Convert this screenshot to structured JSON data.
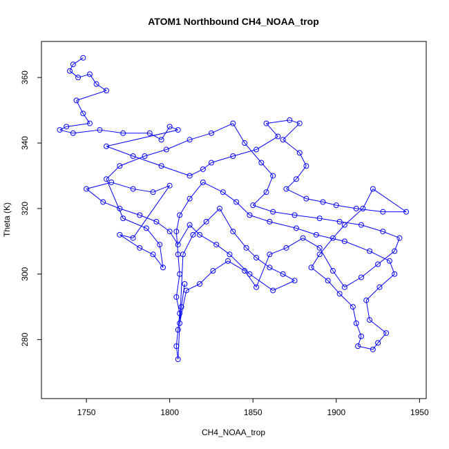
{
  "chart_data": {
    "type": "scatter",
    "title": "ATOM1 Northbound CH4_NOAA_trop",
    "xlabel": "CH4_NOAA_trop",
    "ylabel": "Theta (K)",
    "xlim": [
      1723,
      1954
    ],
    "ylim": [
      262,
      371
    ],
    "xticks": [
      1750,
      1800,
      1850,
      1900,
      1950
    ],
    "yticks": [
      280,
      300,
      320,
      340,
      360
    ],
    "point_style": "open-circle",
    "connected": true,
    "grid": false,
    "legend": "none",
    "color": "#0000ff",
    "series": [
      {
        "values": [
          [
            1748,
            366
          ],
          [
            1742,
            364
          ],
          [
            1740,
            362
          ],
          [
            1745,
            360
          ],
          [
            1752,
            361
          ],
          [
            1756,
            358
          ],
          [
            1762,
            356
          ],
          [
            1744,
            353
          ],
          [
            1748,
            349
          ],
          [
            1752,
            346
          ],
          [
            1738,
            345
          ],
          [
            1734,
            344
          ],
          [
            1742,
            343
          ],
          [
            1758,
            344
          ],
          [
            1772,
            343
          ],
          [
            1788,
            343
          ],
          [
            1795,
            341
          ],
          [
            1800,
            345
          ],
          [
            1805,
            344
          ],
          [
            1762,
            339
          ],
          [
            1778,
            336
          ],
          [
            1795,
            333
          ],
          [
            1812,
            330
          ],
          [
            1820,
            332
          ],
          [
            1825,
            334
          ],
          [
            1838,
            336
          ],
          [
            1852,
            338
          ],
          [
            1865,
            342
          ],
          [
            1858,
            346
          ],
          [
            1872,
            347
          ],
          [
            1878,
            346
          ],
          [
            1868,
            341
          ],
          [
            1878,
            337
          ],
          [
            1882,
            333
          ],
          [
            1876,
            329
          ],
          [
            1870,
            326
          ],
          [
            1882,
            323
          ],
          [
            1892,
            322
          ],
          [
            1900,
            321
          ],
          [
            1912,
            320
          ],
          [
            1928,
            319
          ],
          [
            1942,
            319
          ],
          [
            1922,
            326
          ],
          [
            1916,
            320
          ],
          [
            1905,
            315
          ],
          [
            1898,
            311
          ],
          [
            1890,
            306
          ],
          [
            1885,
            302
          ],
          [
            1895,
            298
          ],
          [
            1902,
            294
          ],
          [
            1910,
            290
          ],
          [
            1912,
            285
          ],
          [
            1915,
            281
          ],
          [
            1913,
            278
          ],
          [
            1922,
            277
          ],
          [
            1925,
            279
          ],
          [
            1930,
            282
          ],
          [
            1920,
            286
          ],
          [
            1918,
            292
          ],
          [
            1926,
            296
          ],
          [
            1935,
            300
          ],
          [
            1932,
            304
          ],
          [
            1920,
            307
          ],
          [
            1905,
            310
          ],
          [
            1888,
            312
          ],
          [
            1876,
            314
          ],
          [
            1860,
            316
          ],
          [
            1848,
            318
          ],
          [
            1840,
            322
          ],
          [
            1832,
            325
          ],
          [
            1820,
            328
          ],
          [
            1812,
            323
          ],
          [
            1806,
            318
          ],
          [
            1804,
            313
          ],
          [
            1805,
            306
          ],
          [
            1806,
            300
          ],
          [
            1804,
            293
          ],
          [
            1806,
            288
          ],
          [
            1805,
            283
          ],
          [
            1804,
            278
          ],
          [
            1805,
            274
          ],
          [
            1808,
            306
          ],
          [
            1814,
            312
          ],
          [
            1822,
            316
          ],
          [
            1830,
            320
          ],
          [
            1838,
            313
          ],
          [
            1846,
            308
          ],
          [
            1852,
            305
          ],
          [
            1860,
            302
          ],
          [
            1868,
            300
          ],
          [
            1875,
            298
          ],
          [
            1862,
            295
          ],
          [
            1848,
            300
          ],
          [
            1836,
            306
          ],
          [
            1828,
            309
          ],
          [
            1818,
            312
          ],
          [
            1812,
            315
          ],
          [
            1805,
            309
          ],
          [
            1800,
            313
          ],
          [
            1792,
            316
          ],
          [
            1782,
            318
          ],
          [
            1770,
            320
          ],
          [
            1760,
            322
          ],
          [
            1750,
            326
          ],
          [
            1765,
            328
          ],
          [
            1778,
            326
          ],
          [
            1790,
            325
          ],
          [
            1800,
            327
          ],
          [
            1778,
            311
          ],
          [
            1770,
            312
          ],
          [
            1782,
            308
          ],
          [
            1790,
            306
          ],
          [
            1796,
            302
          ],
          [
            1794,
            309
          ],
          [
            1786,
            314
          ],
          [
            1772,
            317
          ],
          [
            1762,
            329
          ],
          [
            1770,
            333
          ],
          [
            1785,
            336
          ],
          [
            1798,
            338
          ],
          [
            1812,
            341
          ],
          [
            1825,
            343
          ],
          [
            1838,
            346
          ],
          [
            1845,
            340
          ],
          [
            1855,
            334
          ],
          [
            1862,
            330
          ],
          [
            1858,
            325
          ],
          [
            1850,
            321
          ],
          [
            1862,
            319
          ],
          [
            1875,
            318
          ],
          [
            1890,
            317
          ],
          [
            1902,
            316
          ],
          [
            1915,
            315
          ],
          [
            1928,
            313
          ],
          [
            1938,
            311
          ],
          [
            1935,
            307
          ],
          [
            1925,
            303
          ],
          [
            1915,
            299
          ],
          [
            1905,
            296
          ],
          [
            1898,
            301
          ],
          [
            1890,
            308
          ],
          [
            1880,
            311
          ],
          [
            1870,
            308
          ],
          [
            1860,
            306
          ],
          [
            1852,
            296
          ],
          [
            1845,
            301
          ],
          [
            1835,
            304
          ],
          [
            1826,
            301
          ],
          [
            1818,
            297
          ],
          [
            1810,
            295
          ],
          [
            1806,
            285
          ],
          [
            1807,
            290
          ],
          [
            1809,
            297
          ]
        ]
      }
    ]
  }
}
